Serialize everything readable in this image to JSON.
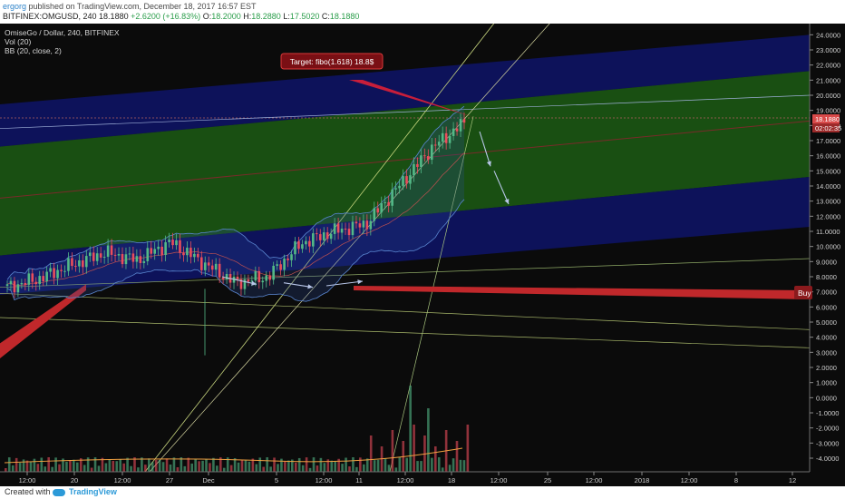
{
  "header": {
    "author": "ergorg",
    "published": "published on TradingView.com, December 18, 2017 16:57 EST",
    "symbol": "BITFINEX:OMGUSD, 240",
    "last": "18.1880",
    "change": "+2.6200 (+16.83%)",
    "ohlc": [
      {
        "k": "O:",
        "v": "18.2000"
      },
      {
        "k": "H:",
        "v": "18.2880"
      },
      {
        "k": "L:",
        "v": "17.5020"
      },
      {
        "k": "C:",
        "v": "18.1880"
      }
    ]
  },
  "legend": {
    "title": "OmiseGo / Dollar, 240, BITFINEX",
    "vol": "Vol (20)",
    "bb": "BB (20, close, 2)"
  },
  "annotations": {
    "target": "Target: fibo(1.618) 18.8$",
    "buy": "Buy"
  },
  "price_tags": {
    "last": "18.1880",
    "countdown": "02:02:35"
  },
  "footer": {
    "created_with": "Created with",
    "brand": "TradingView"
  },
  "colors": {
    "up_candle": "#53b987",
    "down_candle": "#eb4d5c",
    "target_box": "#7a0f14",
    "buy_line": "#c0282b",
    "channel_green": "#1c5c14",
    "channel_blue": "#0d1363"
  },
  "chart_data": {
    "type": "candlestick",
    "y_axis": {
      "ticks": [
        "24.0000",
        "23.0000",
        "22.0000",
        "21.0000",
        "20.0000",
        "19.0000",
        "18.0000",
        "17.0000",
        "16.0000",
        "15.0000",
        "14.0000",
        "13.0000",
        "12.0000",
        "11.0000",
        "10.0000",
        "9.0000",
        "8.0000",
        "7.0000",
        "6.0000",
        "5.0000",
        "4.0000",
        "3.0000",
        "2.0000",
        "1.0000",
        "0.0000",
        "-1.0000",
        "-2.0000",
        "-3.0000",
        "-4.0000"
      ],
      "range": [
        -4.3,
        24.5
      ]
    },
    "x_axis": {
      "ticks": [
        "12:00",
        "20",
        "12:00",
        "27",
        "Dec",
        "5",
        "12:00",
        "11",
        "12:00",
        "18",
        "12:00",
        "25",
        "12:00",
        "2018",
        "12:00",
        "8",
        "12"
      ]
    },
    "close_anchors": [
      {
        "x": "Nov 16",
        "close": 7.3
      },
      {
        "x": "Nov 20",
        "close": 7.9
      },
      {
        "x": "Nov 24",
        "close": 8.8
      },
      {
        "x": "Nov 28",
        "close": 9.6
      },
      {
        "x": "Dec 1",
        "close": 9.1
      },
      {
        "x": "Dec 4",
        "close": 10.3
      },
      {
        "x": "Dec 6",
        "close": 8.9
      },
      {
        "x": "Dec 8",
        "close": 7.6
      },
      {
        "x": "Dec 10",
        "close": 8.0
      },
      {
        "x": "Dec 12",
        "close": 10.2
      },
      {
        "x": "Dec 14",
        "close": 11.0
      },
      {
        "x": "Dec 15",
        "close": 11.5
      },
      {
        "x": "Dec 16",
        "close": 14.0
      },
      {
        "x": "Dec 17",
        "close": 16.5
      },
      {
        "x": "Dec 18",
        "close": 18.188
      }
    ],
    "volume": [
      {
        "x": "Nov 21",
        "volume_scale": 0.25
      },
      {
        "x": "Nov 30",
        "volume_scale": 0.2
      },
      {
        "x": "Dec 12",
        "volume_scale": 0.4
      },
      {
        "x": "Dec 15",
        "volume_scale": 0.55
      },
      {
        "x": "Dec 16",
        "volume_scale": 1.0
      },
      {
        "x": "Dec 18",
        "volume_scale": 0.45
      }
    ]
  }
}
